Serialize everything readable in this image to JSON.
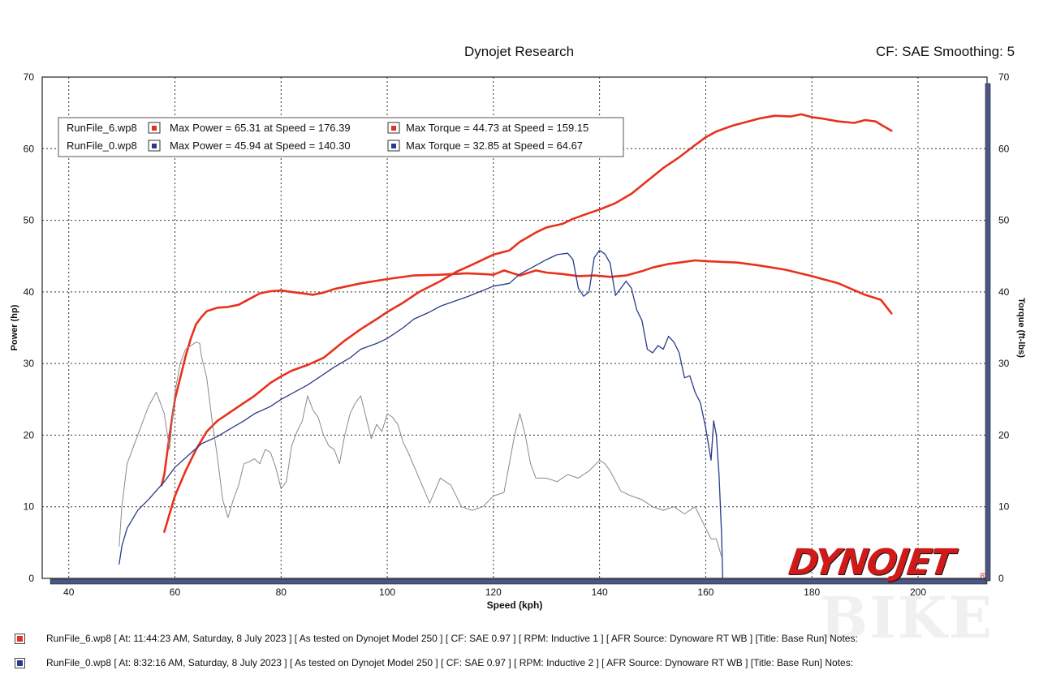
{
  "header": {
    "title": "Dynojet Research",
    "right": "CF: SAE Smoothing: 5"
  },
  "legend": [
    {
      "file": "RunFile_6.wp8",
      "power": "Max Power = 65.31 at Speed = 176.39",
      "torque": "Max Torque = 44.73 at Speed = 159.15",
      "color": "#e8311c"
    },
    {
      "file": "RunFile_0.wp8",
      "power": "Max Power = 45.94 at Speed = 140.30",
      "torque": "Max Torque = 32.85 at Speed = 64.67",
      "color": "#2a3a8a"
    }
  ],
  "footer": [
    {
      "text": "RunFile_6.wp8 [ At: 11:44:23 AM, Saturday, 8 July 2023 ] [ As tested on Dynojet Model 250 ] [ CF: SAE 0.97 ] [ RPM: Inductive 1 ] [ AFR Source: Dynoware RT WB ] [Title: Base Run]  Notes:",
      "color": "#e8311c"
    },
    {
      "text": "RunFile_0.wp8 [ At: 8:32:16 AM, Saturday, 8 July 2023 ] [ As tested on Dynojet Model 250 ] [ CF: SAE 0.97 ] [ RPM: Inductive 2 ] [ AFR Source: Dynoware RT WB ] [Title: Base Run]  Notes:",
      "color": "#2a3a8a"
    }
  ],
  "logo": "DYNOJET",
  "logo_mark": "®",
  "watermark": "BIKE",
  "chart_data": {
    "type": "line",
    "xlabel": "Speed (kph)",
    "ylabel": "Power (hp)",
    "y2label": "Torque (ft-lbs)",
    "xlim": [
      35,
      213
    ],
    "ylim": [
      0,
      70
    ],
    "y2lim": [
      0,
      70
    ],
    "xticks": [
      40,
      60,
      80,
      100,
      120,
      140,
      160,
      180,
      200
    ],
    "yticks": [
      0,
      10,
      20,
      30,
      40,
      50,
      60,
      70
    ],
    "grid": true,
    "legend_position": "top-left",
    "series": [
      {
        "name": "RunFile_6.wp8",
        "measure": "Max Power",
        "color": "#e8311c",
        "width": 2.6,
        "x": [
          58,
          59,
          60,
          62,
          64,
          66,
          68,
          70,
          72,
          75,
          78,
          80,
          82,
          85,
          88,
          90,
          92,
          95,
          98,
          100,
          103,
          106,
          110,
          113,
          116,
          118,
          120,
          123,
          125,
          128,
          130,
          133,
          135,
          138,
          140,
          143,
          146,
          149,
          152,
          155,
          158,
          160,
          162,
          165,
          168,
          170,
          173,
          176,
          178,
          180,
          182,
          185,
          188,
          190,
          192,
          195
        ],
        "y": [
          6.5,
          9,
          11.5,
          15,
          18,
          20.5,
          22,
          23,
          24,
          25.5,
          27.3,
          28.2,
          29,
          29.8,
          30.8,
          32,
          33.2,
          34.8,
          36.2,
          37.2,
          38.5,
          40,
          41.5,
          42.8,
          43.8,
          44.5,
          45.2,
          45.8,
          47,
          48.3,
          49,
          49.5,
          50.2,
          51,
          51.5,
          52.4,
          53.7,
          55.5,
          57.3,
          58.8,
          60.5,
          61.6,
          62.4,
          63.2,
          63.8,
          64.2,
          64.6,
          64.5,
          64.8,
          64.4,
          64.2,
          63.8,
          63.6,
          64,
          63.8,
          62.5
        ]
      },
      {
        "name": "RunFile_6.wp8",
        "measure": "Max Torque",
        "color": "#e8311c",
        "width": 2.6,
        "x": [
          57.5,
          58,
          59,
          60,
          62,
          63,
          64,
          65,
          66,
          68,
          70,
          72,
          74,
          76,
          78,
          80,
          82,
          84,
          86,
          88,
          90,
          95,
          100,
          105,
          110,
          115,
          118,
          120,
          122,
          125,
          128,
          130,
          133,
          136,
          139,
          142,
          145,
          148,
          150,
          153,
          156,
          158,
          160,
          163,
          166,
          170,
          175,
          180,
          185,
          190,
          193,
          195
        ],
        "y": [
          13,
          14.5,
          20,
          25,
          31,
          33.5,
          35.5,
          36.5,
          37.3,
          37.8,
          37.9,
          38.2,
          39,
          39.8,
          40.1,
          40.2,
          40,
          39.8,
          39.6,
          39.9,
          40.4,
          41.2,
          41.8,
          42.3,
          42.4,
          42.6,
          42.5,
          42.4,
          43,
          42.3,
          43,
          42.7,
          42.5,
          42.2,
          42.3,
          42.1,
          42.3,
          42.9,
          43.4,
          43.9,
          44.2,
          44.4,
          44.3,
          44.2,
          44.1,
          43.7,
          43.1,
          42.2,
          41.2,
          39.6,
          38.9,
          37
        ]
      },
      {
        "name": "RunFile_0.wp8",
        "measure": "Max Power",
        "color": "#2a3a8a",
        "width": 1.3,
        "x": [
          49.5,
          50,
          51,
          53,
          55,
          58,
          60,
          63,
          65,
          68,
          70,
          73,
          75,
          78,
          80,
          83,
          85,
          88,
          90,
          93,
          95,
          98,
          100,
          103,
          105,
          108,
          110,
          113,
          115,
          118,
          120,
          123,
          125,
          128,
          130,
          132,
          134,
          135,
          136,
          137,
          138,
          139,
          140,
          141,
          142,
          143,
          144,
          145,
          146,
          147,
          148,
          149,
          150,
          151,
          152,
          153,
          154,
          155,
          156,
          157,
          158,
          159,
          160,
          161,
          161.5,
          162,
          162.5,
          163,
          163.2
        ],
        "y": [
          2,
          4.5,
          7,
          9.5,
          11,
          13.5,
          15.5,
          17.5,
          18.8,
          19.8,
          20.7,
          22,
          23,
          24,
          25,
          26.2,
          27,
          28.5,
          29.5,
          30.8,
          32,
          32.8,
          33.5,
          35,
          36.2,
          37.2,
          38,
          38.8,
          39.3,
          40.2,
          40.8,
          41.2,
          42.5,
          43.7,
          44.5,
          45.2,
          45.4,
          44.5,
          40.5,
          39.4,
          40,
          44.8,
          45.8,
          45.3,
          44,
          39.5,
          40.5,
          41.5,
          40.5,
          37.5,
          36,
          32,
          31.5,
          32.5,
          32,
          33.8,
          33,
          31.5,
          28,
          28.3,
          26,
          24.5,
          21,
          16.5,
          22,
          20,
          14.5,
          6,
          0
        ]
      },
      {
        "name": "RunFile_0.wp8",
        "measure": "Max Torque",
        "color": "#8a8a8a",
        "width": 1.0,
        "x": [
          49.5,
          50,
          51,
          53,
          55,
          56.5,
          57,
          58,
          59,
          60,
          61,
          62,
          63,
          64,
          64.67,
          65,
          66,
          67,
          68,
          69,
          70,
          71,
          72,
          73,
          74,
          75,
          76,
          77,
          78,
          79,
          80,
          81,
          82,
          83,
          84,
          85,
          86,
          87,
          88,
          89,
          90,
          91,
          92,
          93,
          94,
          95,
          96,
          97,
          98,
          99,
          100,
          101,
          102,
          103,
          104,
          106,
          108,
          110,
          112,
          114,
          116,
          118,
          120,
          122,
          124,
          125,
          126,
          127,
          128,
          130,
          132,
          134,
          136,
          138,
          140,
          141,
          142,
          144,
          146,
          148,
          150,
          152,
          154,
          156,
          158,
          160,
          161,
          162,
          163
        ],
        "y": [
          4.5,
          10,
          16,
          20,
          24,
          26,
          25,
          23,
          18,
          26,
          30,
          32,
          32.5,
          33,
          32.8,
          31,
          28,
          22,
          17,
          11,
          8.5,
          11,
          13,
          16,
          16.3,
          16.7,
          16,
          18,
          17.6,
          15.5,
          12.5,
          13.5,
          18.5,
          20.5,
          22,
          25.5,
          23.5,
          22.5,
          20,
          18.5,
          18,
          16,
          20,
          23,
          24.5,
          25.5,
          22.5,
          19.5,
          21.5,
          20.5,
          23,
          22.5,
          21.5,
          19,
          17.5,
          14,
          10.5,
          14,
          13,
          10,
          9.5,
          10,
          11.5,
          12,
          20,
          23,
          20,
          16,
          14,
          14,
          13.5,
          14.5,
          14,
          15,
          16.5,
          16,
          15,
          12.2,
          11.5,
          11,
          10,
          9.5,
          10,
          9,
          10,
          7,
          5.5,
          5.5,
          3
        ]
      }
    ]
  }
}
